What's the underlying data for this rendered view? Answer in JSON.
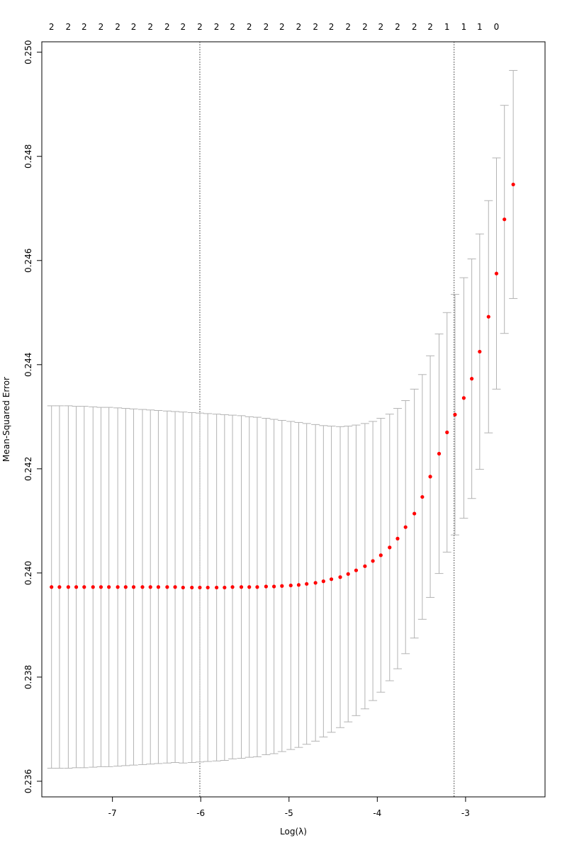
{
  "chart_data": {
    "type": "scatter",
    "title": "",
    "xlabel": "Log(λ)",
    "ylabel": "Mean-Squared Error",
    "xlim": [
      -7.8,
      -2.1
    ],
    "ylim": [
      0.2357,
      0.2502
    ],
    "x_ticks": [
      -7,
      -6,
      -5,
      -4,
      -3
    ],
    "x_tick_labels": [
      "-7",
      "-6",
      "-5",
      "-4",
      "-3"
    ],
    "y_ticks": [
      0.236,
      0.238,
      0.24,
      0.242,
      0.244,
      0.246,
      0.248,
      0.25
    ],
    "y_tick_labels": [
      "0.236",
      "0.238",
      "0.240",
      "0.242",
      "0.244",
      "0.246",
      "0.248",
      "0.250"
    ],
    "top_axis_labels": [
      "2",
      "2",
      "2",
      "2",
      "2",
      "2",
      "2",
      "2",
      "2",
      "2",
      "2",
      "2",
      "2",
      "2",
      "2",
      "2",
      "2",
      "2",
      "2",
      "2",
      "2",
      "2",
      "2",
      "2",
      "1",
      "1",
      "1",
      "0"
    ],
    "vlines": [
      -6.01,
      -3.13
    ],
    "grid": false,
    "legend": "none",
    "colors": {
      "point": "#ff0000",
      "errorbar": "#b3b3b3",
      "vline": "#333333"
    },
    "series": [
      {
        "x": [
          -7.69,
          -7.6,
          -7.5,
          -7.41,
          -7.32,
          -7.22,
          -7.13,
          -7.04,
          -6.94,
          -6.85,
          -6.76,
          -6.66,
          -6.57,
          -6.48,
          -6.38,
          -6.29,
          -6.2,
          -6.1,
          -6.01,
          -5.92,
          -5.82,
          -5.73,
          -5.64,
          -5.54,
          -5.45,
          -5.36,
          -5.26,
          -5.17,
          -5.08,
          -4.98,
          -4.89,
          -4.8,
          -4.7,
          -4.61,
          -4.52,
          -4.42,
          -4.33,
          -4.24,
          -4.14,
          -4.05,
          -3.96,
          -3.86,
          -3.77,
          -3.68,
          -3.58,
          -3.49,
          -3.4,
          -3.3,
          -3.21,
          -3.12,
          -3.02,
          -2.93,
          -2.84,
          -2.74,
          -2.65,
          -2.56,
          -2.46
        ],
        "y": [
          0.23973,
          0.23973,
          0.23973,
          0.23973,
          0.23973,
          0.23973,
          0.23973,
          0.23973,
          0.23973,
          0.23973,
          0.23973,
          0.23973,
          0.23973,
          0.23973,
          0.23973,
          0.23973,
          0.23972,
          0.23972,
          0.23972,
          0.23972,
          0.23972,
          0.23972,
          0.23973,
          0.23973,
          0.23973,
          0.23973,
          0.23974,
          0.23974,
          0.23975,
          0.23976,
          0.23977,
          0.23979,
          0.23981,
          0.23984,
          0.23988,
          0.23992,
          0.23998,
          0.24005,
          0.24013,
          0.24023,
          0.24034,
          0.24049,
          0.24066,
          0.24088,
          0.24114,
          0.24146,
          0.24185,
          0.24229,
          0.2427,
          0.24304,
          0.24336,
          0.24373,
          0.24425,
          0.24492,
          0.24575,
          0.24679,
          0.24746
        ],
        "upper": [
          0.24321,
          0.24321,
          0.24321,
          0.2432,
          0.2432,
          0.24319,
          0.24318,
          0.24318,
          0.24317,
          0.24316,
          0.24315,
          0.24314,
          0.24313,
          0.24312,
          0.24311,
          0.2431,
          0.24309,
          0.24308,
          0.24307,
          0.24306,
          0.24305,
          0.24304,
          0.24303,
          0.24302,
          0.243,
          0.24299,
          0.24297,
          0.24295,
          0.24293,
          0.24291,
          0.24289,
          0.24287,
          0.24285,
          0.24283,
          0.24282,
          0.24281,
          0.24282,
          0.24284,
          0.24287,
          0.24291,
          0.24297,
          0.24305,
          0.24316,
          0.24331,
          0.24353,
          0.24381,
          0.24417,
          0.24459,
          0.245,
          0.24535,
          0.24567,
          0.24603,
          0.24651,
          0.24715,
          0.24797,
          0.24898,
          0.24965
        ],
        "lower": [
          0.23625,
          0.23625,
          0.23625,
          0.23626,
          0.23626,
          0.23627,
          0.23628,
          0.23628,
          0.23629,
          0.2363,
          0.23631,
          0.23632,
          0.23633,
          0.23634,
          0.23635,
          0.23636,
          0.23635,
          0.23636,
          0.23637,
          0.23638,
          0.23639,
          0.2364,
          0.23643,
          0.23644,
          0.23646,
          0.23647,
          0.23651,
          0.23653,
          0.23657,
          0.23661,
          0.23665,
          0.23671,
          0.23677,
          0.23685,
          0.23694,
          0.23703,
          0.23714,
          0.23726,
          0.23739,
          0.23755,
          0.23771,
          0.23793,
          0.23816,
          0.23845,
          0.23875,
          0.23911,
          0.23953,
          0.23999,
          0.2404,
          0.24073,
          0.24105,
          0.24143,
          0.24199,
          0.24269,
          0.24353,
          0.2446,
          0.24527
        ]
      }
    ]
  }
}
